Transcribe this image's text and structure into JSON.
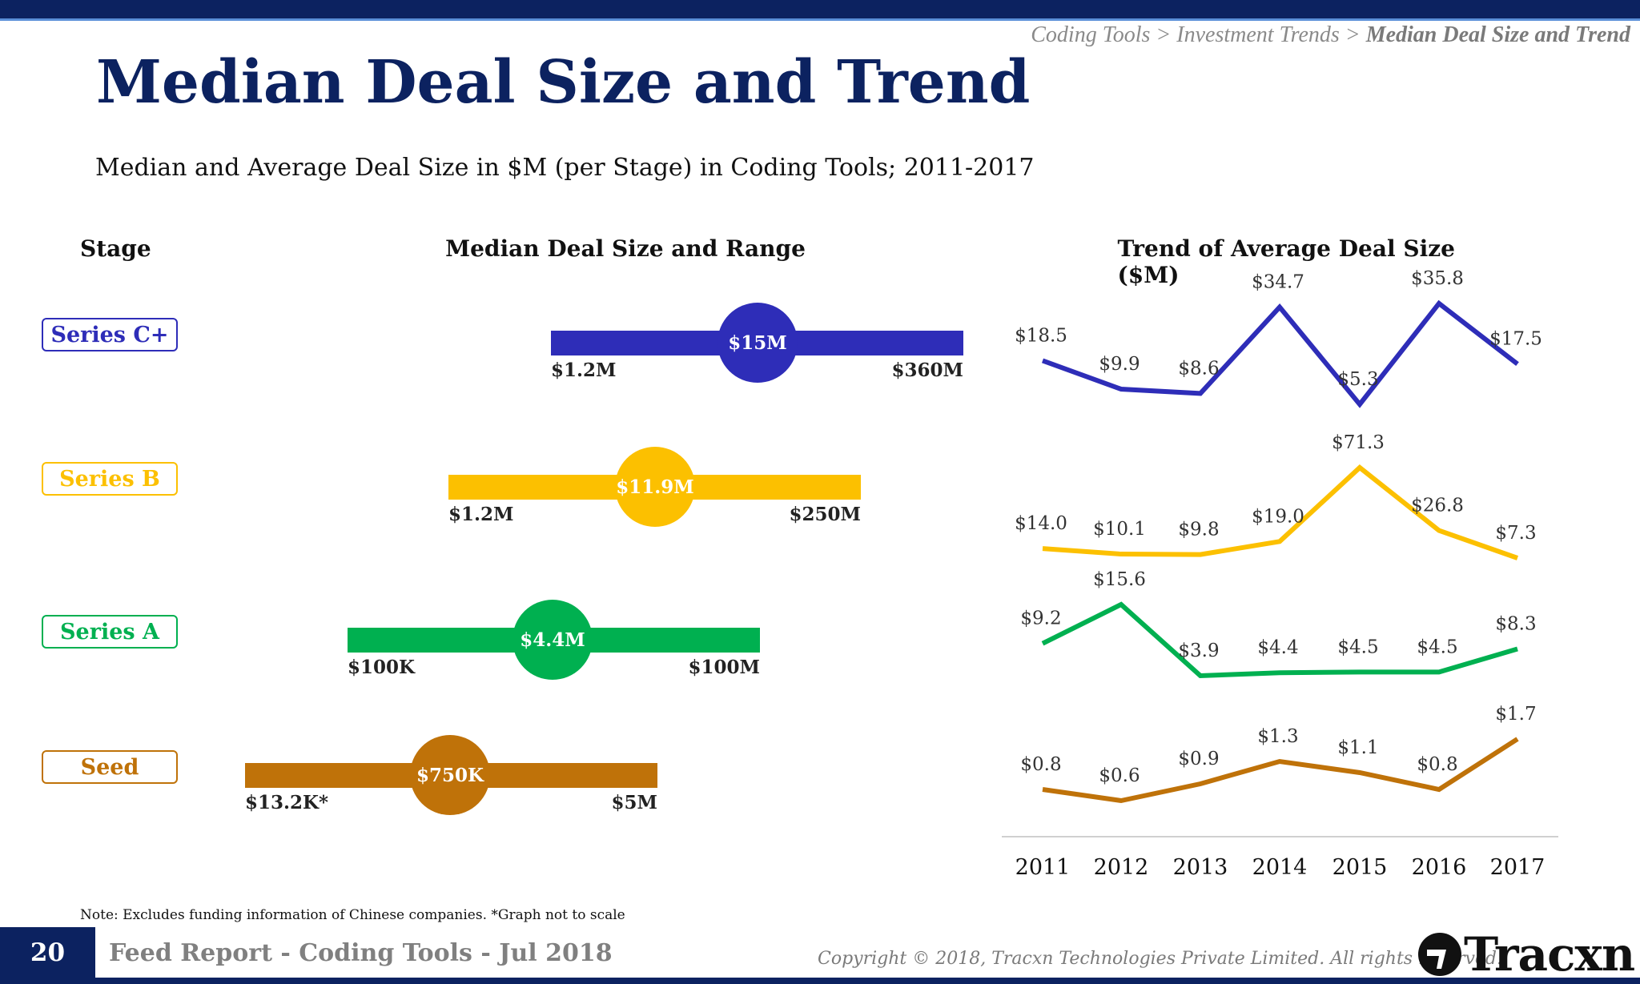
{
  "header": {
    "breadcrumb": [
      "Coding Tools",
      "Investment Trends",
      "Median Deal Size and Trend"
    ],
    "separator": " > ",
    "title": "Median Deal Size and Trend",
    "subtitle": "Median and Average Deal Size in $M (per Stage) in Coding Tools; 2011-2017"
  },
  "columns": {
    "stage": "Stage",
    "range": "Median Deal Size and Range",
    "trend": "Trend of Average Deal Size ($M)"
  },
  "stages": [
    {
      "name": "Series C+",
      "color": "#2e2db8",
      "min": "$1.2M",
      "median": "$15M",
      "max": "$360M"
    },
    {
      "name": "Series B",
      "color": "#fcc000",
      "min": "$1.2M",
      "median": "$11.9M",
      "max": "$250M"
    },
    {
      "name": "Series A",
      "color": "#00b050",
      "min": "$100K",
      "median": "$4.4M",
      "max": "$100M"
    },
    {
      "name": "Seed",
      "color": "#bf7209",
      "min": "$13.2K*",
      "median": "$750K",
      "max": "$5M"
    }
  ],
  "chart_data": {
    "type": "line",
    "title": "Trend of Average Deal Size ($M)",
    "x": [
      "2011",
      "2012",
      "2013",
      "2014",
      "2015",
      "2016",
      "2017"
    ],
    "series": [
      {
        "name": "Series C+",
        "color": "#2e2db8",
        "values": [
          18.5,
          9.9,
          8.6,
          34.7,
          5.3,
          35.8,
          17.5
        ]
      },
      {
        "name": "Series B",
        "color": "#fcc000",
        "values": [
          14.0,
          10.1,
          9.8,
          19.0,
          71.3,
          26.8,
          7.3
        ]
      },
      {
        "name": "Series A",
        "color": "#00b050",
        "values": [
          9.2,
          15.6,
          3.9,
          4.4,
          4.5,
          4.5,
          8.3
        ]
      },
      {
        "name": "Seed",
        "color": "#bf7209",
        "values": [
          0.8,
          0.6,
          0.9,
          1.3,
          1.1,
          0.8,
          1.7
        ]
      }
    ],
    "label_prefix": "$",
    "grid": false
  },
  "footer": {
    "note": "Note: Excludes funding information of Chinese companies. *Graph not to scale",
    "page": "20",
    "report": "Feed Report - Coding Tools - Jul 2018",
    "copyright": "Copyright © 2018, Tracxn Technologies Private Limited. All rights reserved.",
    "logo": "Tracxn"
  }
}
